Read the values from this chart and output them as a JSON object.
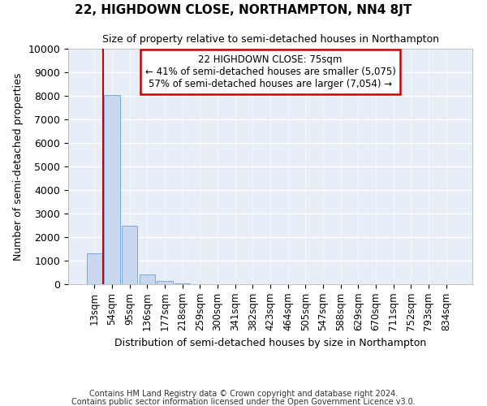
{
  "title": "22, HIGHDOWN CLOSE, NORTHAMPTON, NN4 8JT",
  "subtitle": "Size of property relative to semi-detached houses in Northampton",
  "xlabel": "Distribution of semi-detached houses by size in Northampton",
  "ylabel": "Number of semi-detached properties",
  "footer1": "Contains HM Land Registry data © Crown copyright and database right 2024.",
  "footer2": "Contains public sector information licensed under the Open Government Licence v3.0.",
  "bar_labels": [
    "13sqm",
    "54sqm",
    "95sqm",
    "136sqm",
    "177sqm",
    "218sqm",
    "259sqm",
    "300sqm",
    "341sqm",
    "382sqm",
    "423sqm",
    "464sqm",
    "505sqm",
    "547sqm",
    "588sqm",
    "629sqm",
    "670sqm",
    "711sqm",
    "752sqm",
    "793sqm",
    "834sqm"
  ],
  "bar_values": [
    1300,
    8050,
    2500,
    400,
    150,
    30,
    0,
    0,
    0,
    0,
    0,
    0,
    0,
    0,
    0,
    0,
    0,
    0,
    0,
    0,
    0
  ],
  "bar_color": "#c8d8f0",
  "bar_edgecolor": "#7aaad8",
  "background_color": "#e8eef8",
  "grid_color": "#ffffff",
  "annotation_line1": "22 HIGHDOWN CLOSE: 75sqm",
  "annotation_line2": "← 41% of semi-detached houses are smaller (5,075)",
  "annotation_line3": "57% of semi-detached houses are larger (7,054) →",
  "annotation_box_color": "#cc0000",
  "vline_color": "#cc0000",
  "vline_x": 0.51,
  "ylim": [
    0,
    10000
  ],
  "yticks": [
    0,
    1000,
    2000,
    3000,
    4000,
    5000,
    6000,
    7000,
    8000,
    9000,
    10000
  ]
}
